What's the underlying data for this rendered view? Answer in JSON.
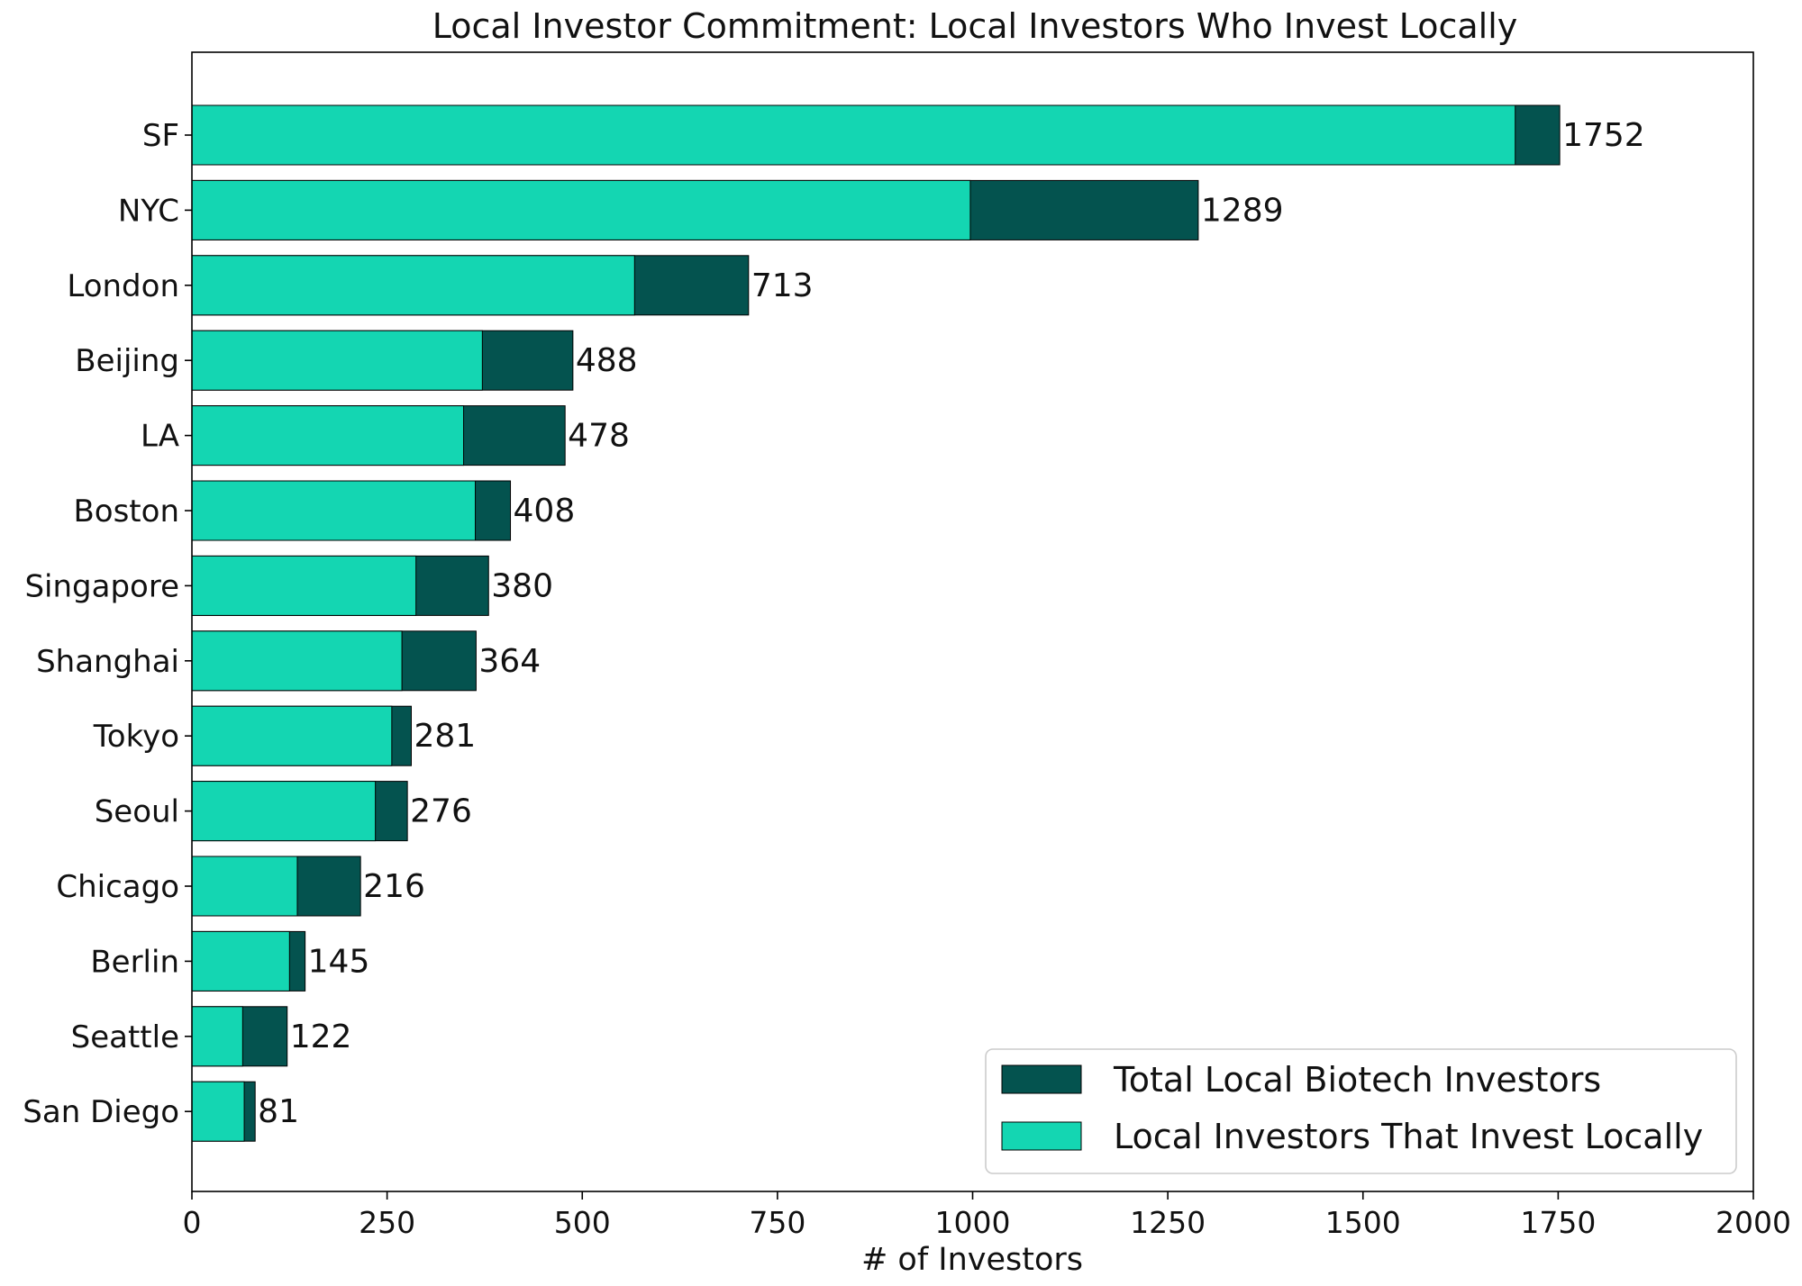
{
  "chart_data": {
    "type": "bar",
    "orientation": "horizontal",
    "title": "Local Investor Commitment: Local Investors Who Invest Locally",
    "xlabel": "# of Investors",
    "ylabel": "",
    "xlim": [
      0,
      2000
    ],
    "xticks": [
      0,
      250,
      500,
      750,
      1000,
      1250,
      1500,
      1750,
      2000
    ],
    "grid": false,
    "legend_position": "lower-right",
    "categories": [
      "SF",
      "NYC",
      "London",
      "Beijing",
      "LA",
      "Boston",
      "Singapore",
      "Shanghai",
      "Tokyo",
      "Seoul",
      "Chicago",
      "Berlin",
      "Seattle",
      "San Diego"
    ],
    "series": [
      {
        "name": "Total Local Biotech Investors",
        "color": "#04534f",
        "values": [
          1752,
          1289,
          713,
          488,
          478,
          408,
          380,
          364,
          281,
          276,
          216,
          145,
          122,
          81
        ]
      },
      {
        "name": "Local Investors That Invest Locally",
        "color": "#14d6b2",
        "values": [
          1695,
          997,
          567,
          372,
          348,
          363,
          287,
          269,
          256,
          235,
          135,
          125,
          65,
          67
        ]
      }
    ],
    "data_labels": [
      "1752",
      "1289",
      "713",
      "488",
      "478",
      "408",
      "380",
      "364",
      "281",
      "276",
      "216",
      "145",
      "122",
      "81"
    ]
  }
}
